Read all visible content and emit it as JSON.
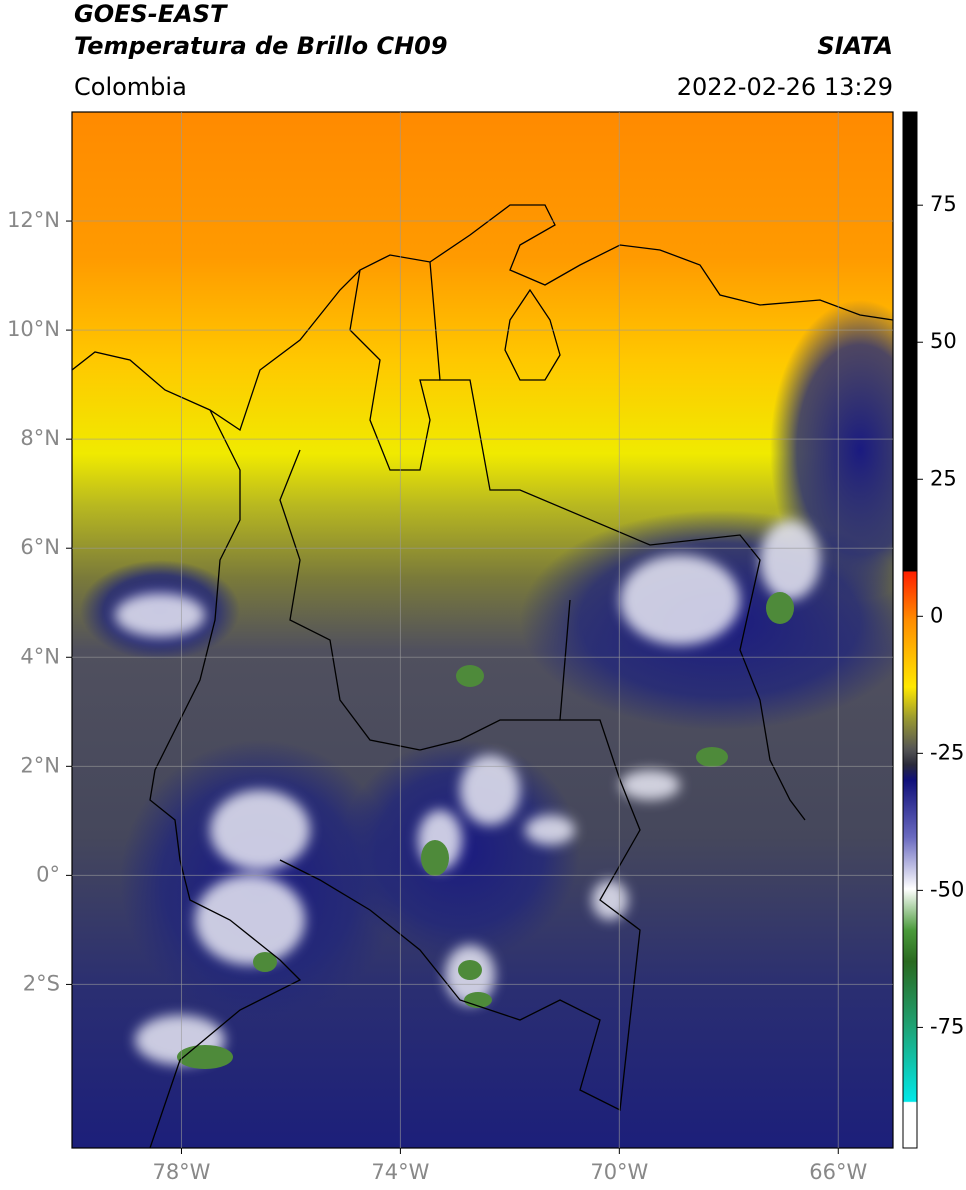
{
  "header": {
    "title": "GOES-EAST",
    "subtitle": "Temperatura de Brillo CH09",
    "agency": "SIATA",
    "region": "Colombia",
    "datetime": "2022-02-26 13:29"
  },
  "map": {
    "xlim": [
      -80,
      -65
    ],
    "ylim": [
      -5,
      14
    ],
    "xticks": [
      {
        "value": -78,
        "label": "78°W"
      },
      {
        "value": -74,
        "label": "74°W"
      },
      {
        "value": -70,
        "label": "70°W"
      },
      {
        "value": -66,
        "label": "66°W"
      }
    ],
    "yticks": [
      {
        "value": 12,
        "label": "12°N"
      },
      {
        "value": 10,
        "label": "10°N"
      },
      {
        "value": 8,
        "label": "8°N"
      },
      {
        "value": 6,
        "label": "6°N"
      },
      {
        "value": 4,
        "label": "4°N"
      },
      {
        "value": 2,
        "label": "2°N"
      },
      {
        "value": 0,
        "label": "0°"
      },
      {
        "value": -2,
        "label": "2°S"
      }
    ],
    "grid": true
  },
  "colorbar": {
    "lim": [
      -97,
      92
    ],
    "ticks": [
      75,
      50,
      25,
      0,
      -25,
      -50,
      -75
    ]
  }
}
